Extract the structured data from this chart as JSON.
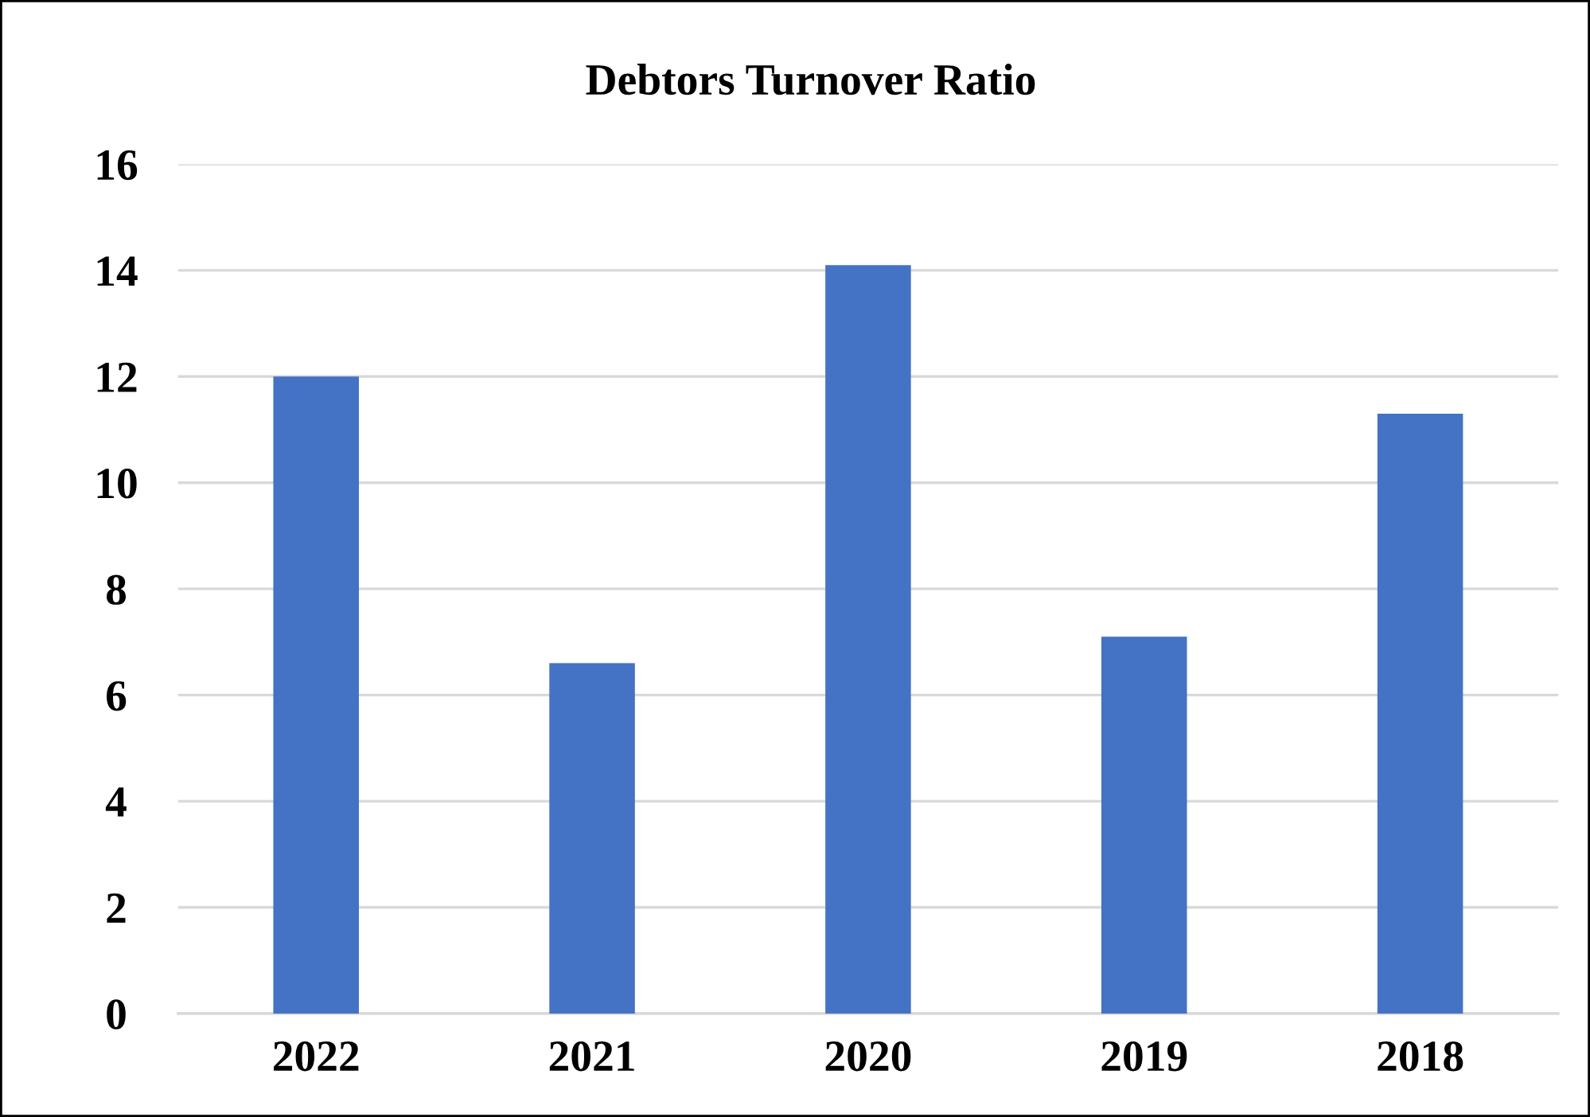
{
  "chart_data": {
    "type": "bar",
    "title": "Debtors Turnover Ratio",
    "categories": [
      "2022",
      "2021",
      "2020",
      "2019",
      "2018"
    ],
    "values": [
      12.0,
      6.6,
      14.1,
      7.1,
      11.3
    ],
    "color": "#4472c4",
    "ylim": [
      0,
      16
    ],
    "yticks": [
      0,
      2,
      4,
      6,
      8,
      10,
      12,
      14,
      16
    ],
    "grid": "y",
    "legend": false
  }
}
